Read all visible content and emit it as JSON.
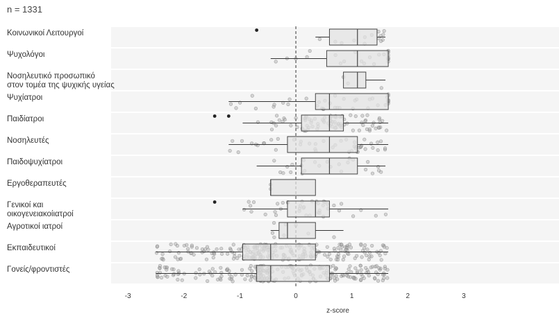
{
  "chart_data": {
    "type": "boxplot",
    "subtitle": "n = 1331",
    "xlabel": "z-score",
    "xlim": [
      -3.3,
      4.7
    ],
    "xticks": [
      -3,
      -2,
      -1,
      0,
      1,
      2,
      3
    ],
    "reference_line_x": 0,
    "grid": "horizontal bands",
    "categories": [
      {
        "label": [
          "Κοινωνικοί Λειτουργοί"
        ],
        "whisker_low": 0.35,
        "q1": 0.6,
        "median": 1.1,
        "q3": 1.45,
        "whisker_high": 1.6,
        "outliers": [
          -0.7
        ],
        "n_points": 14
      },
      {
        "label": [
          "Ψυχολόγοι"
        ],
        "whisker_low": -0.45,
        "q1": 0.55,
        "median": 1.1,
        "q3": 1.65,
        "whisker_high": 1.65,
        "outliers": [],
        "n_points": 24
      },
      {
        "label": [
          "Νοσηλευτικό προσωπικό",
          "στον τομέα της ψυχικής υγείας"
        ],
        "whisker_low": 0.85,
        "q1": 0.85,
        "median": 1.1,
        "q3": 1.25,
        "whisker_high": 1.6,
        "outliers": [],
        "n_points": 3
      },
      {
        "label": [
          "Ψυχίατροι"
        ],
        "whisker_low": -1.2,
        "q1": 0.35,
        "median": 0.6,
        "q3": 1.65,
        "whisker_high": 1.65,
        "outliers": [],
        "n_points": 40
      },
      {
        "label": [
          "Παιδίατροι"
        ],
        "whisker_low": -0.95,
        "q1": 0.1,
        "median": 0.6,
        "q3": 0.85,
        "whisker_high": 1.65,
        "outliers": [
          -1.45,
          -1.2
        ],
        "n_points": 90
      },
      {
        "label": [
          "Νοσηλευτές"
        ],
        "whisker_low": -1.2,
        "q1": -0.15,
        "median": 0.6,
        "q3": 1.1,
        "whisker_high": 1.65,
        "outliers": [],
        "n_points": 45
      },
      {
        "label": [
          "Παιδοψυχίατροι"
        ],
        "whisker_low": -0.7,
        "q1": 0.1,
        "median": 0.6,
        "q3": 1.1,
        "whisker_high": 1.6,
        "outliers": [],
        "n_points": 25
      },
      {
        "label": [
          "Εργοθεραπευτές"
        ],
        "whisker_low": -0.45,
        "q1": -0.45,
        "median": -0.45,
        "q3": 0.35,
        "whisker_high": 0.35,
        "outliers": [],
        "n_points": 2
      },
      {
        "label": [
          "Γενικοί και",
          "οικογενειακοίιατροί"
        ],
        "whisker_low": -0.95,
        "q1": -0.15,
        "median": 0.35,
        "q3": 0.6,
        "whisker_high": 1.65,
        "outliers": [
          -1.45
        ],
        "n_points": 40
      },
      {
        "label": [
          "Αγροτικοί ιατροί"
        ],
        "whisker_low": -0.45,
        "q1": -0.3,
        "median": -0.15,
        "q3": 0.35,
        "whisker_high": 0.85,
        "outliers": [],
        "n_points": 8
      },
      {
        "label": [
          "Εκπαιδευτικοί"
        ],
        "whisker_low": -2.5,
        "q1": -0.95,
        "median": -0.45,
        "q3": 0.35,
        "whisker_high": 1.65,
        "outliers": [],
        "n_points": 230
      },
      {
        "label": [
          "Γονείς/φροντιστές"
        ],
        "whisker_low": -2.5,
        "q1": -0.7,
        "median": -0.45,
        "q3": 0.6,
        "whisker_high": 1.65,
        "outliers": [],
        "n_points": 240
      }
    ],
    "colors": {
      "box_fill": "#e3e3e3",
      "box_stroke": "#444444",
      "whisker": "#333333",
      "point_fill": "#aaaaaa",
      "point_stroke": "#777777",
      "outlier": "#222222",
      "band": "#f5f5f5",
      "reference_line": "#333333"
    }
  }
}
